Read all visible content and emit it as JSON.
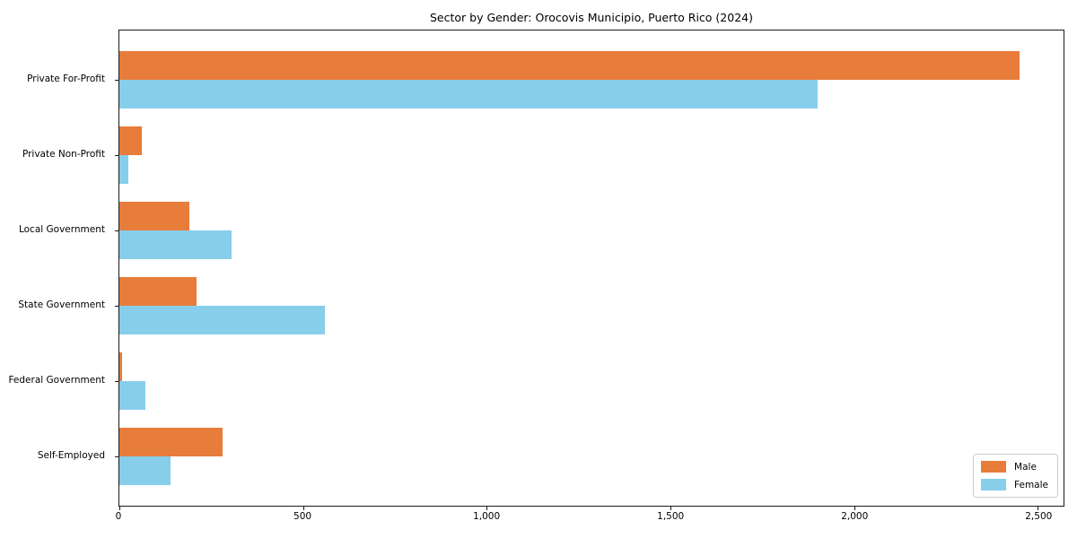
{
  "title": "Sector by Gender: Orocovis Municipio, Puerto Rico (2024)",
  "chart_data": {
    "type": "bar",
    "orientation": "horizontal",
    "title": "Sector by Gender: Orocovis Municipio, Puerto Rico (2024)",
    "xlabel": "",
    "ylabel": "",
    "categories": [
      "Private For-Profit",
      "Private Non-Profit",
      "Local Government",
      "State Government",
      "Federal Government",
      "Self-Employed"
    ],
    "series": [
      {
        "name": "Male",
        "color": "#E87C3B",
        "values": [
          2450,
          60,
          190,
          210,
          8,
          280
        ]
      },
      {
        "name": "Female",
        "color": "#87CEEB",
        "values": [
          1900,
          25,
          305,
          560,
          70,
          140
        ]
      }
    ],
    "xlim": [
      0,
      2570
    ],
    "x_ticks": [
      0,
      500,
      1000,
      1500,
      2000,
      2500
    ],
    "x_tick_labels": [
      "0",
      "500",
      "1,000",
      "1,500",
      "2,000",
      "2,500"
    ],
    "grid": false,
    "legend": {
      "position": "lower right",
      "entries": [
        "Male",
        "Female"
      ]
    },
    "colors": {
      "spine": "#1a1a1a",
      "legend_border": "#cccccc",
      "background": "#ffffff"
    }
  }
}
